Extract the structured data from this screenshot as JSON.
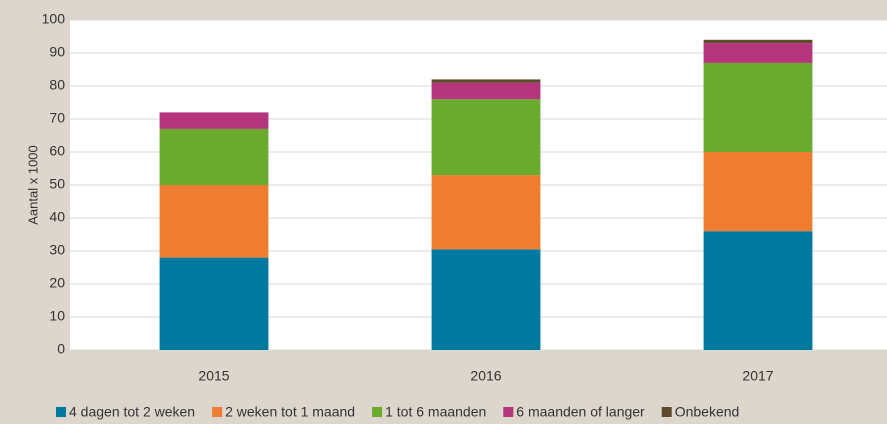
{
  "chart_data": {
    "type": "stacked-bar",
    "y_label": "Aantal x 1000",
    "categories": [
      "2015",
      "2016",
      "2017"
    ],
    "series": [
      {
        "name": "4 dagen tot 2 weken",
        "color": "#0079a0",
        "values": [
          28,
          30.5,
          36
        ]
      },
      {
        "name": "2 weken tot 1 maand",
        "color": "#ee7d31",
        "values": [
          22,
          22.5,
          24
        ]
      },
      {
        "name": "1 tot 6 maanden",
        "color": "#6aab2e",
        "values": [
          17,
          23,
          27
        ]
      },
      {
        "name": "6 maanden of langer",
        "color": "#b5357d",
        "values": [
          5,
          5,
          6
        ]
      },
      {
        "name": "Onbekend",
        "color": "#5e4a2a",
        "values": [
          0,
          1,
          1
        ]
      }
    ],
    "ylim": [
      0,
      100
    ],
    "yticks": [
      0,
      10,
      20,
      30,
      40,
      50,
      60,
      70,
      80,
      90,
      100
    ],
    "grid": true
  }
}
